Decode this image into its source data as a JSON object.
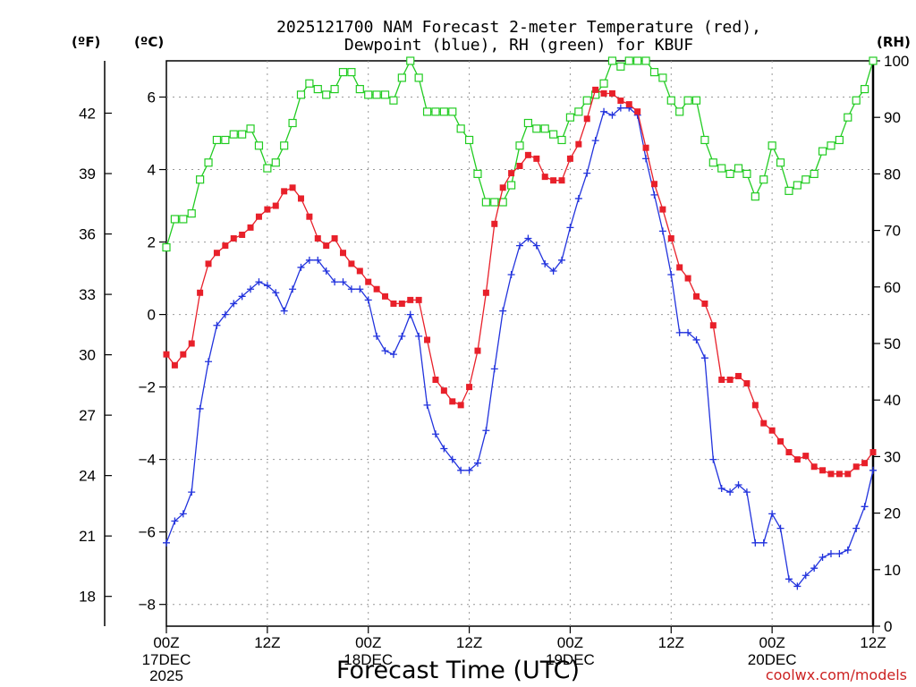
{
  "title_line1": "2025121700 NAM Forecast 2-meter Temperature (red),",
  "title_line2": "Dewpoint (blue), RH (green) for KBUF",
  "unit_f": "(ºF)",
  "unit_c": "(ºC)",
  "unit_rh": "(RH)",
  "xlabel": "Forecast Time (UTC)",
  "credit": "coolwx.com/models",
  "colors": {
    "temperature": "#e8202a",
    "dewpoint": "#2233dd",
    "rh": "#22cc22",
    "grid": "#999999"
  },
  "chart_data": {
    "type": "line",
    "x_hours_range": [
      0,
      84
    ],
    "x_ticks": [
      {
        "hour": 0,
        "label": "00Z",
        "date": "17DEC",
        "year": "2025"
      },
      {
        "hour": 12,
        "label": "12Z"
      },
      {
        "hour": 24,
        "label": "00Z",
        "date": "18DEC"
      },
      {
        "hour": 36,
        "label": "12Z"
      },
      {
        "hour": 48,
        "label": "00Z",
        "date": "19DEC"
      },
      {
        "hour": 60,
        "label": "12Z"
      },
      {
        "hour": 72,
        "label": "00Z",
        "date": "20DEC"
      },
      {
        "hour": 84,
        "label": "12Z"
      }
    ],
    "ylim_c": [
      -8.6,
      7.0
    ],
    "yticks_c": [
      -8,
      -6,
      -4,
      -2,
      0,
      2,
      4,
      6
    ],
    "yticks_f": [
      18,
      21,
      24,
      27,
      30,
      33,
      36,
      39,
      42
    ],
    "ylim_rh": [
      0,
      100
    ],
    "yticks_rh": [
      0,
      10,
      20,
      30,
      40,
      50,
      60,
      70,
      80,
      90,
      100
    ],
    "grid": true,
    "series": [
      {
        "name": "2-meter Temperature",
        "color": "red",
        "marker": "filled-square",
        "axis": "celsius",
        "values": [
          -1.1,
          -1.4,
          -1.1,
          -0.8,
          0.6,
          1.4,
          1.7,
          1.9,
          2.1,
          2.2,
          2.4,
          2.7,
          2.9,
          3.0,
          3.4,
          3.5,
          3.2,
          2.7,
          2.1,
          1.9,
          2.1,
          1.7,
          1.4,
          1.2,
          0.9,
          0.7,
          0.5,
          0.3,
          0.3,
          0.4,
          0.4,
          -0.7,
          -1.8,
          -2.1,
          -2.4,
          -2.5,
          -2.0,
          -1.0,
          0.6,
          2.5,
          3.5,
          3.9,
          4.1,
          4.4,
          4.3,
          3.8,
          3.7,
          3.7,
          4.3,
          4.7,
          5.4,
          6.2,
          6.1,
          6.1,
          5.9,
          5.8,
          5.6,
          4.6,
          3.6,
          2.9,
          2.1,
          1.3,
          1.0,
          0.5,
          0.3,
          -0.3,
          -1.8,
          -1.8,
          -1.7,
          -1.9,
          -2.5,
          -3.0,
          -3.2,
          -3.5,
          -3.8,
          -4.0,
          -3.9,
          -4.2,
          -4.3,
          -4.4,
          -4.4,
          -4.4,
          -4.2,
          -4.1,
          -3.8
        ]
      },
      {
        "name": "Dewpoint",
        "color": "blue",
        "marker": "plus",
        "axis": "celsius",
        "values": [
          -6.3,
          -5.7,
          -5.5,
          -4.9,
          -2.6,
          -1.3,
          -0.3,
          0.0,
          0.3,
          0.5,
          0.7,
          0.9,
          0.8,
          0.6,
          0.1,
          0.7,
          1.3,
          1.5,
          1.5,
          1.2,
          0.9,
          0.9,
          0.7,
          0.7,
          0.4,
          -0.6,
          -1.0,
          -1.1,
          -0.6,
          0.0,
          -0.6,
          -2.5,
          -3.3,
          -3.7,
          -4.0,
          -4.3,
          -4.3,
          -4.1,
          -3.2,
          -1.5,
          0.1,
          1.1,
          1.9,
          2.1,
          1.9,
          1.4,
          1.2,
          1.5,
          2.4,
          3.2,
          3.9,
          4.8,
          5.6,
          5.5,
          5.7,
          5.7,
          5.5,
          4.3,
          3.3,
          2.3,
          1.1,
          -0.5,
          -0.5,
          -0.7,
          -1.2,
          -4.0,
          -4.8,
          -4.9,
          -4.7,
          -4.9,
          -6.3,
          -6.3,
          -5.5,
          -5.9,
          -7.3,
          -7.5,
          -7.2,
          -7.0,
          -6.7,
          -6.6,
          -6.6,
          -6.5,
          -5.9,
          -5.3,
          -4.3
        ]
      },
      {
        "name": "RH",
        "color": "green",
        "marker": "open-square",
        "axis": "rh",
        "values": [
          67,
          72,
          72,
          73,
          79,
          82,
          86,
          86,
          87,
          87,
          88,
          85,
          81,
          82,
          85,
          89,
          94,
          96,
          95,
          94,
          95,
          98,
          98,
          95,
          94,
          94,
          94,
          93,
          97,
          101,
          97,
          91,
          91,
          91,
          91,
          88,
          86,
          80,
          75,
          75,
          75,
          78,
          85,
          89,
          88,
          88,
          87,
          86,
          90,
          91,
          93,
          94,
          96,
          101,
          99,
          100,
          101,
          100,
          98,
          97,
          93,
          91,
          93,
          93,
          86,
          82,
          81,
          80,
          81,
          80,
          76,
          79,
          85,
          82,
          77,
          78,
          79,
          80,
          84,
          85,
          86,
          90,
          93,
          95,
          100
        ]
      }
    ]
  }
}
